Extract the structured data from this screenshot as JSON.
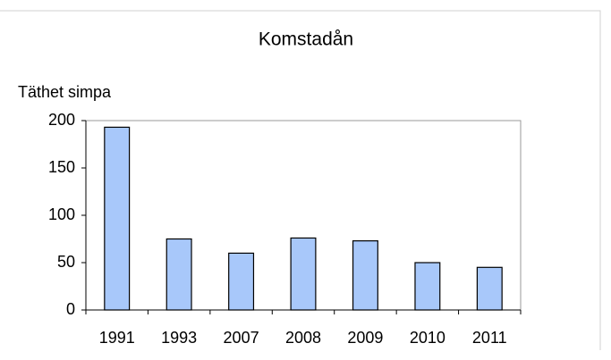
{
  "chart_data": {
    "type": "bar",
    "title": "Komstadån",
    "y_label": "Täthet simpa",
    "categories": [
      "1991",
      "1993",
      "2007",
      "2008",
      "2009",
      "2010",
      "2011"
    ],
    "values": [
      193,
      75,
      60,
      76,
      73,
      50,
      45
    ],
    "color": "#a8c8fa",
    "ylim": [
      0,
      200
    ],
    "yticks": [
      0,
      50,
      100,
      150,
      200
    ],
    "grid": false
  }
}
